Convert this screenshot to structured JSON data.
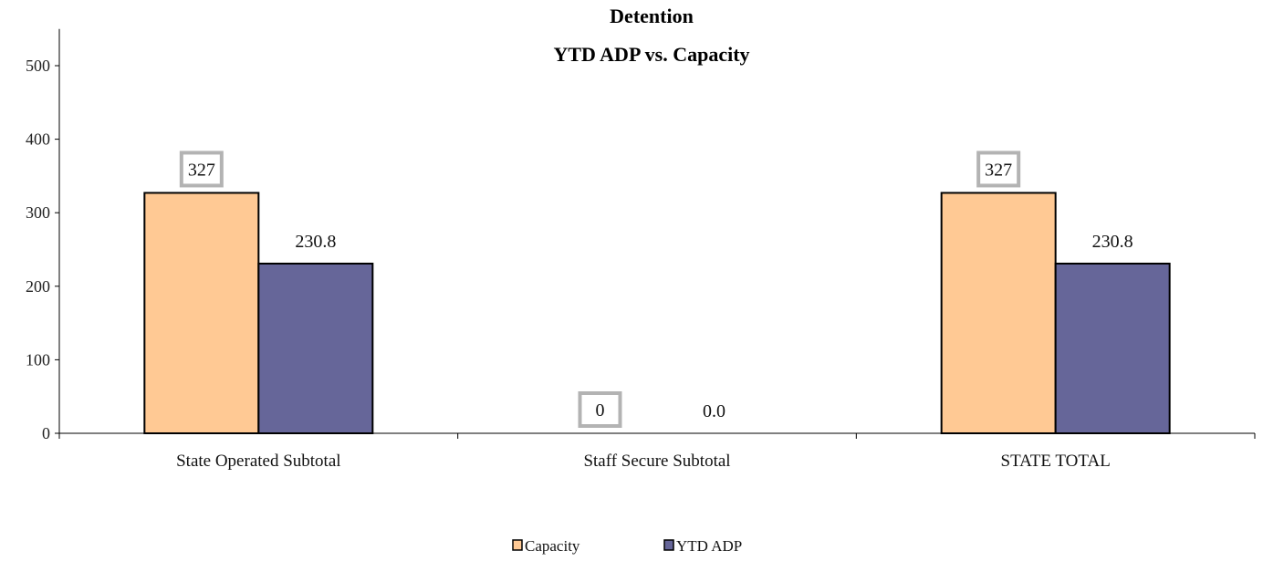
{
  "chart_data": {
    "type": "bar",
    "title_lines": [
      "Detention",
      "YTD ADP vs. Capacity"
    ],
    "categories": [
      "State Operated Subtotal",
      "Staff Secure Subtotal",
      "STATE TOTAL"
    ],
    "series": [
      {
        "name": "Capacity",
        "color": "#FFC994",
        "values": [
          327,
          0,
          327
        ],
        "labels": [
          "327",
          "0",
          "327"
        ],
        "label_style": "boxed"
      },
      {
        "name": "YTD ADP",
        "color": "#666699",
        "values": [
          230.8,
          0.0,
          230.8
        ],
        "labels": [
          "230.8",
          "0.0",
          "230.8"
        ],
        "label_style": "plain"
      }
    ],
    "ylim": [
      0,
      550
    ],
    "yticks": [
      0,
      100,
      200,
      300,
      400,
      500
    ],
    "xlabel": "",
    "ylabel": "",
    "grid": false,
    "legend_position": "bottom"
  }
}
